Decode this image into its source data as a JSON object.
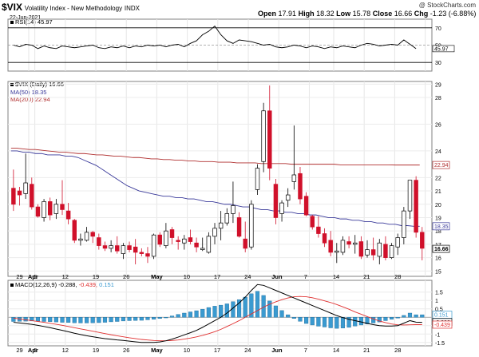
{
  "header": {
    "symbol": "$VIX",
    "name": "Volatility Index - New Methodology",
    "exchange": "INDX",
    "date": "22-Jun-2021",
    "open_label": "Open",
    "open": "17.91",
    "high_label": "High",
    "high": "18.32",
    "low_label": "Low",
    "low": "15.78",
    "close_label": "Close",
    "close": "16.66",
    "chg_label": "Chg",
    "chg": "-1.23 (-6.88%)",
    "watermark": "@ StockCharts.com"
  },
  "rsi_panel": {
    "legend": "RSI(14) 45.97",
    "ticks": [
      70,
      50,
      30
    ],
    "last_label": "45.97"
  },
  "price_panel": {
    "legend_main": "$VIX (Daily) 16.66",
    "legend_ma50": "MA(50) 18.35",
    "legend_ma200": "MA(200) 22.94",
    "last_close_label": "16.66",
    "ma50_label": "18.35",
    "ma200_label": "22.94"
  },
  "macd_panel": {
    "legend_main": "MACD(12,26,9)",
    "legend_v1": "-0.288,",
    "legend_v2": "-0.439,",
    "legend_v3": "0.151",
    "labels": [
      "0.151",
      "-0.288",
      "-0.439"
    ]
  },
  "x_axis_labels": [
    "29",
    "Apr",
    "5",
    "12",
    "19",
    "26",
    "May",
    "10",
    "17",
    "24",
    "Jun",
    "7",
    "14",
    "21",
    "28"
  ],
  "colors": {
    "up": "#ffffff",
    "down": "#d0102a",
    "ma50": "#3a3a9a",
    "ma200": "#b03030",
    "rsi": "#000000",
    "macd": "#000000",
    "signal": "#e03030",
    "hist": "#3a9ad0"
  },
  "chart_data": [
    {
      "type": "line",
      "title": "RSI(14)",
      "yticks": [
        30,
        50,
        70
      ],
      "ylim": [
        20,
        80
      ],
      "values": [
        50,
        48,
        51,
        50,
        46,
        49,
        47,
        46,
        49,
        48,
        47,
        48,
        49,
        50,
        47,
        46,
        48,
        47,
        49,
        47,
        49,
        48,
        50,
        49,
        50,
        48,
        50,
        51,
        48,
        52,
        55,
        62,
        66,
        72,
        62,
        55,
        52,
        56,
        55,
        54,
        52,
        50,
        51,
        48,
        47,
        48,
        50,
        49,
        47,
        49,
        48,
        46,
        48,
        47,
        49,
        48,
        47,
        50,
        52,
        51,
        49,
        50,
        51,
        50,
        56,
        51,
        46
      ],
      "last": 45.97
    },
    {
      "type": "candlestick",
      "title": "$VIX (Daily)",
      "ylabel": "",
      "yticks": [
        15,
        16,
        17,
        18,
        19,
        20,
        21,
        22,
        24,
        26,
        28,
        29
      ],
      "ylim": [
        14.6,
        29.2
      ],
      "candles": [
        {
          "o": 21.2,
          "h": 22.6,
          "l": 19.5,
          "c": 20.0
        },
        {
          "o": 21.0,
          "h": 21.3,
          "l": 19.9,
          "c": 20.7
        },
        {
          "o": 20.8,
          "h": 23.8,
          "l": 20.4,
          "c": 21.6
        },
        {
          "o": 21.5,
          "h": 22.0,
          "l": 19.6,
          "c": 19.8
        },
        {
          "o": 19.8,
          "h": 20.0,
          "l": 19.0,
          "c": 19.1
        },
        {
          "o": 19.0,
          "h": 20.4,
          "l": 18.7,
          "c": 20.2
        },
        {
          "o": 20.2,
          "h": 20.5,
          "l": 18.8,
          "c": 19.2
        },
        {
          "o": 19.3,
          "h": 20.4,
          "l": 18.9,
          "c": 20.0
        },
        {
          "o": 20.0,
          "h": 21.8,
          "l": 19.2,
          "c": 19.6
        },
        {
          "o": 19.5,
          "h": 20.1,
          "l": 18.5,
          "c": 18.9
        },
        {
          "o": 18.8,
          "h": 18.9,
          "l": 17.1,
          "c": 17.3
        },
        {
          "o": 17.3,
          "h": 17.8,
          "l": 16.9,
          "c": 17.4
        },
        {
          "o": 17.3,
          "h": 18.3,
          "l": 17.2,
          "c": 17.9
        },
        {
          "o": 17.9,
          "h": 18.0,
          "l": 17.1,
          "c": 17.6
        },
        {
          "o": 17.5,
          "h": 17.8,
          "l": 16.6,
          "c": 16.9
        },
        {
          "o": 16.9,
          "h": 17.2,
          "l": 16.5,
          "c": 16.7
        },
        {
          "o": 16.7,
          "h": 17.3,
          "l": 16.4,
          "c": 16.9
        },
        {
          "o": 16.9,
          "h": 17.6,
          "l": 16.3,
          "c": 16.5
        },
        {
          "o": 16.3,
          "h": 17.1,
          "l": 15.9,
          "c": 16.9
        },
        {
          "o": 16.9,
          "h": 17.2,
          "l": 16.4,
          "c": 16.6
        },
        {
          "o": 16.8,
          "h": 17.4,
          "l": 15.5,
          "c": 16.4
        },
        {
          "o": 16.4,
          "h": 16.7,
          "l": 16.1,
          "c": 16.3
        },
        {
          "o": 16.3,
          "h": 16.8,
          "l": 15.6,
          "c": 16.1
        },
        {
          "o": 16.1,
          "h": 17.8,
          "l": 15.9,
          "c": 17.7
        },
        {
          "o": 17.7,
          "h": 17.9,
          "l": 16.8,
          "c": 17.0
        },
        {
          "o": 16.9,
          "h": 18.6,
          "l": 16.7,
          "c": 18.0
        },
        {
          "o": 18.1,
          "h": 18.3,
          "l": 17.0,
          "c": 17.5
        },
        {
          "o": 17.3,
          "h": 17.6,
          "l": 16.6,
          "c": 17.2
        },
        {
          "o": 17.1,
          "h": 17.7,
          "l": 16.6,
          "c": 17.4
        },
        {
          "o": 17.5,
          "h": 18.1,
          "l": 17.0,
          "c": 17.2
        },
        {
          "o": 17.1,
          "h": 17.5,
          "l": 16.4,
          "c": 16.8
        },
        {
          "o": 16.6,
          "h": 17.5,
          "l": 16.5,
          "c": 16.7
        },
        {
          "o": 16.4,
          "h": 17.9,
          "l": 16.3,
          "c": 17.6
        },
        {
          "o": 17.6,
          "h": 18.6,
          "l": 17.0,
          "c": 18.2
        },
        {
          "o": 18.2,
          "h": 19.5,
          "l": 17.3,
          "c": 18.6
        },
        {
          "o": 18.6,
          "h": 19.7,
          "l": 18.4,
          "c": 19.3
        },
        {
          "o": 19.3,
          "h": 21.7,
          "l": 18.6,
          "c": 19.9
        },
        {
          "o": 19.0,
          "h": 19.4,
          "l": 17.5,
          "c": 17.6
        },
        {
          "o": 17.4,
          "h": 18.7,
          "l": 16.4,
          "c": 16.7
        },
        {
          "o": 16.8,
          "h": 20.3,
          "l": 16.6,
          "c": 20.0
        },
        {
          "o": 21.1,
          "h": 23.0,
          "l": 20.7,
          "c": 22.7
        },
        {
          "o": 23.2,
          "h": 27.6,
          "l": 22.4,
          "c": 27.0
        },
        {
          "o": 27.0,
          "h": 28.9,
          "l": 21.8,
          "c": 22.7
        },
        {
          "o": 21.5,
          "h": 21.9,
          "l": 18.5,
          "c": 19.0
        },
        {
          "o": 19.3,
          "h": 20.3,
          "l": 18.7,
          "c": 20.1
        },
        {
          "o": 20.3,
          "h": 21.2,
          "l": 19.8,
          "c": 20.7
        },
        {
          "o": 21.7,
          "h": 25.9,
          "l": 21.1,
          "c": 22.2
        },
        {
          "o": 22.3,
          "h": 22.8,
          "l": 20.0,
          "c": 20.4
        },
        {
          "o": 20.6,
          "h": 20.9,
          "l": 19.1,
          "c": 19.2
        },
        {
          "o": 19.1,
          "h": 19.2,
          "l": 18.1,
          "c": 18.3
        },
        {
          "o": 18.3,
          "h": 19.1,
          "l": 17.5,
          "c": 17.8
        },
        {
          "o": 17.8,
          "h": 18.2,
          "l": 16.8,
          "c": 17.1
        },
        {
          "o": 17.3,
          "h": 18.0,
          "l": 16.1,
          "c": 16.4
        },
        {
          "o": 16.4,
          "h": 17.1,
          "l": 15.6,
          "c": 16.5
        },
        {
          "o": 16.4,
          "h": 17.6,
          "l": 16.2,
          "c": 17.3
        },
        {
          "o": 17.2,
          "h": 17.6,
          "l": 16.7,
          "c": 17.0
        },
        {
          "o": 17.0,
          "h": 17.7,
          "l": 16.3,
          "c": 17.1
        },
        {
          "o": 17.2,
          "h": 17.6,
          "l": 15.9,
          "c": 16.1
        },
        {
          "o": 16.2,
          "h": 17.3,
          "l": 16.0,
          "c": 16.6
        },
        {
          "o": 16.6,
          "h": 17.5,
          "l": 15.8,
          "c": 16.2
        },
        {
          "o": 16.1,
          "h": 17.4,
          "l": 15.5,
          "c": 17.1
        },
        {
          "o": 17.0,
          "h": 17.6,
          "l": 15.8,
          "c": 16.0
        },
        {
          "o": 16.0,
          "h": 17.1,
          "l": 15.9,
          "c": 16.9
        },
        {
          "o": 16.8,
          "h": 17.8,
          "l": 16.2,
          "c": 17.5
        },
        {
          "o": 17.5,
          "h": 19.8,
          "l": 17.0,
          "c": 19.5
        },
        {
          "o": 19.5,
          "h": 21.8,
          "l": 18.9,
          "c": 21.8
        },
        {
          "o": 21.8,
          "h": 22.1,
          "l": 17.5,
          "c": 17.9
        },
        {
          "o": 17.9,
          "h": 18.3,
          "l": 15.8,
          "c": 16.7
        }
      ],
      "ma50": [
        24.0,
        24.0,
        23.9,
        23.9,
        23.8,
        23.8,
        23.7,
        23.7,
        23.7,
        23.6,
        23.6,
        23.5,
        23.3,
        23.1,
        22.9,
        22.6,
        22.3,
        22.0,
        21.7,
        21.4,
        21.2,
        21.0,
        20.9,
        20.8,
        20.7,
        20.6,
        20.6,
        20.5,
        20.5,
        20.4,
        20.4,
        20.3,
        20.2,
        20.2,
        20.1,
        20.0,
        20.0,
        19.9,
        19.8,
        19.8,
        19.7,
        19.6,
        19.6,
        19.5,
        19.5,
        19.4,
        19.4,
        19.3,
        19.3,
        19.2,
        19.2,
        19.1,
        19.0,
        19.0,
        18.9,
        18.9,
        18.8,
        18.8,
        18.7,
        18.7,
        18.6,
        18.6,
        18.5,
        18.5,
        18.4,
        18.4,
        18.35,
        18.35
      ],
      "ma200": [
        24.2,
        24.2,
        24.15,
        24.1,
        24.1,
        24.05,
        24.0,
        23.95,
        23.9,
        23.9,
        23.85,
        23.8,
        23.8,
        23.75,
        23.7,
        23.7,
        23.65,
        23.6,
        23.6,
        23.55,
        23.5,
        23.5,
        23.45,
        23.4,
        23.4,
        23.35,
        23.35,
        23.3,
        23.3,
        23.25,
        23.25,
        23.2,
        23.2,
        23.2,
        23.15,
        23.15,
        23.15,
        23.1,
        23.1,
        23.1,
        23.1,
        23.05,
        23.05,
        23.05,
        23.05,
        23.05,
        23.0,
        23.0,
        23.0,
        23.0,
        23.0,
        23.0,
        23.0,
        23.0,
        22.95,
        22.95,
        22.95,
        22.95,
        22.95,
        22.95,
        22.95,
        22.95,
        22.95,
        22.94,
        22.94,
        22.94,
        22.94,
        22.94
      ],
      "ma50_name": "MA(50)",
      "ma200_name": "MA(200)"
    },
    {
      "type": "bar",
      "title": "MACD(12,26,9)",
      "ylim": [
        -1.7,
        2.2
      ],
      "yticks": [
        1.5,
        1.0,
        0.5,
        0.0,
        -0.5,
        -1.0,
        -1.5
      ],
      "macd": [
        -0.3,
        -0.34,
        -0.38,
        -0.42,
        -0.48,
        -0.55,
        -0.62,
        -0.7,
        -0.78,
        -0.86,
        -0.95,
        -1.03,
        -1.1,
        -1.16,
        -1.22,
        -1.27,
        -1.31,
        -1.35,
        -1.38,
        -1.42,
        -1.46,
        -1.5,
        -1.5,
        -1.5,
        -1.47,
        -1.4,
        -1.3,
        -1.18,
        -1.05,
        -0.92,
        -0.78,
        -0.6,
        -0.4,
        -0.2,
        0.0,
        0.25,
        0.55,
        0.85,
        1.2,
        1.6,
        1.95,
        1.9,
        1.75,
        1.6,
        1.45,
        1.3,
        1.15,
        1.0,
        0.85,
        0.7,
        0.55,
        0.4,
        0.25,
        0.1,
        -0.02,
        -0.12,
        -0.2,
        -0.28,
        -0.36,
        -0.44,
        -0.5,
        -0.52,
        -0.52,
        -0.5,
        -0.35,
        -0.2,
        -0.29,
        -0.3
      ],
      "signal": [
        -0.05,
        -0.1,
        -0.15,
        -0.2,
        -0.25,
        -0.3,
        -0.36,
        -0.42,
        -0.48,
        -0.55,
        -0.62,
        -0.69,
        -0.76,
        -0.83,
        -0.9,
        -0.97,
        -1.04,
        -1.1,
        -1.16,
        -1.22,
        -1.27,
        -1.32,
        -1.35,
        -1.38,
        -1.4,
        -1.4,
        -1.38,
        -1.35,
        -1.3,
        -1.24,
        -1.17,
        -1.08,
        -0.98,
        -0.86,
        -0.72,
        -0.55,
        -0.38,
        -0.2,
        0.0,
        0.2,
        0.4,
        0.6,
        0.78,
        0.92,
        1.05,
        1.15,
        1.22,
        1.24,
        1.22,
        1.16,
        1.08,
        0.98,
        0.88,
        0.76,
        0.62,
        0.48,
        0.32,
        0.18,
        0.04,
        -0.1,
        -0.22,
        -0.32,
        -0.4,
        -0.45,
        -0.46,
        -0.45,
        -0.44,
        -0.44
      ],
      "histogram": [
        -0.25,
        -0.24,
        -0.23,
        -0.22,
        -0.23,
        -0.25,
        -0.26,
        -0.28,
        -0.3,
        -0.31,
        -0.33,
        -0.34,
        -0.34,
        -0.33,
        -0.32,
        -0.3,
        -0.27,
        -0.25,
        -0.22,
        -0.2,
        -0.19,
        -0.18,
        -0.15,
        -0.12,
        -0.07,
        0.0,
        0.08,
        0.17,
        0.25,
        0.32,
        0.39,
        0.48,
        0.58,
        0.66,
        0.72,
        0.8,
        0.93,
        1.05,
        1.2,
        1.4,
        1.55,
        1.3,
        0.97,
        0.68,
        0.4,
        0.15,
        -0.07,
        -0.24,
        -0.37,
        -0.46,
        -0.53,
        -0.58,
        -0.63,
        -0.66,
        -0.64,
        -0.6,
        -0.52,
        -0.46,
        -0.4,
        -0.34,
        -0.28,
        -0.2,
        -0.12,
        -0.05,
        0.11,
        0.25,
        0.15,
        0.15
      ]
    }
  ]
}
